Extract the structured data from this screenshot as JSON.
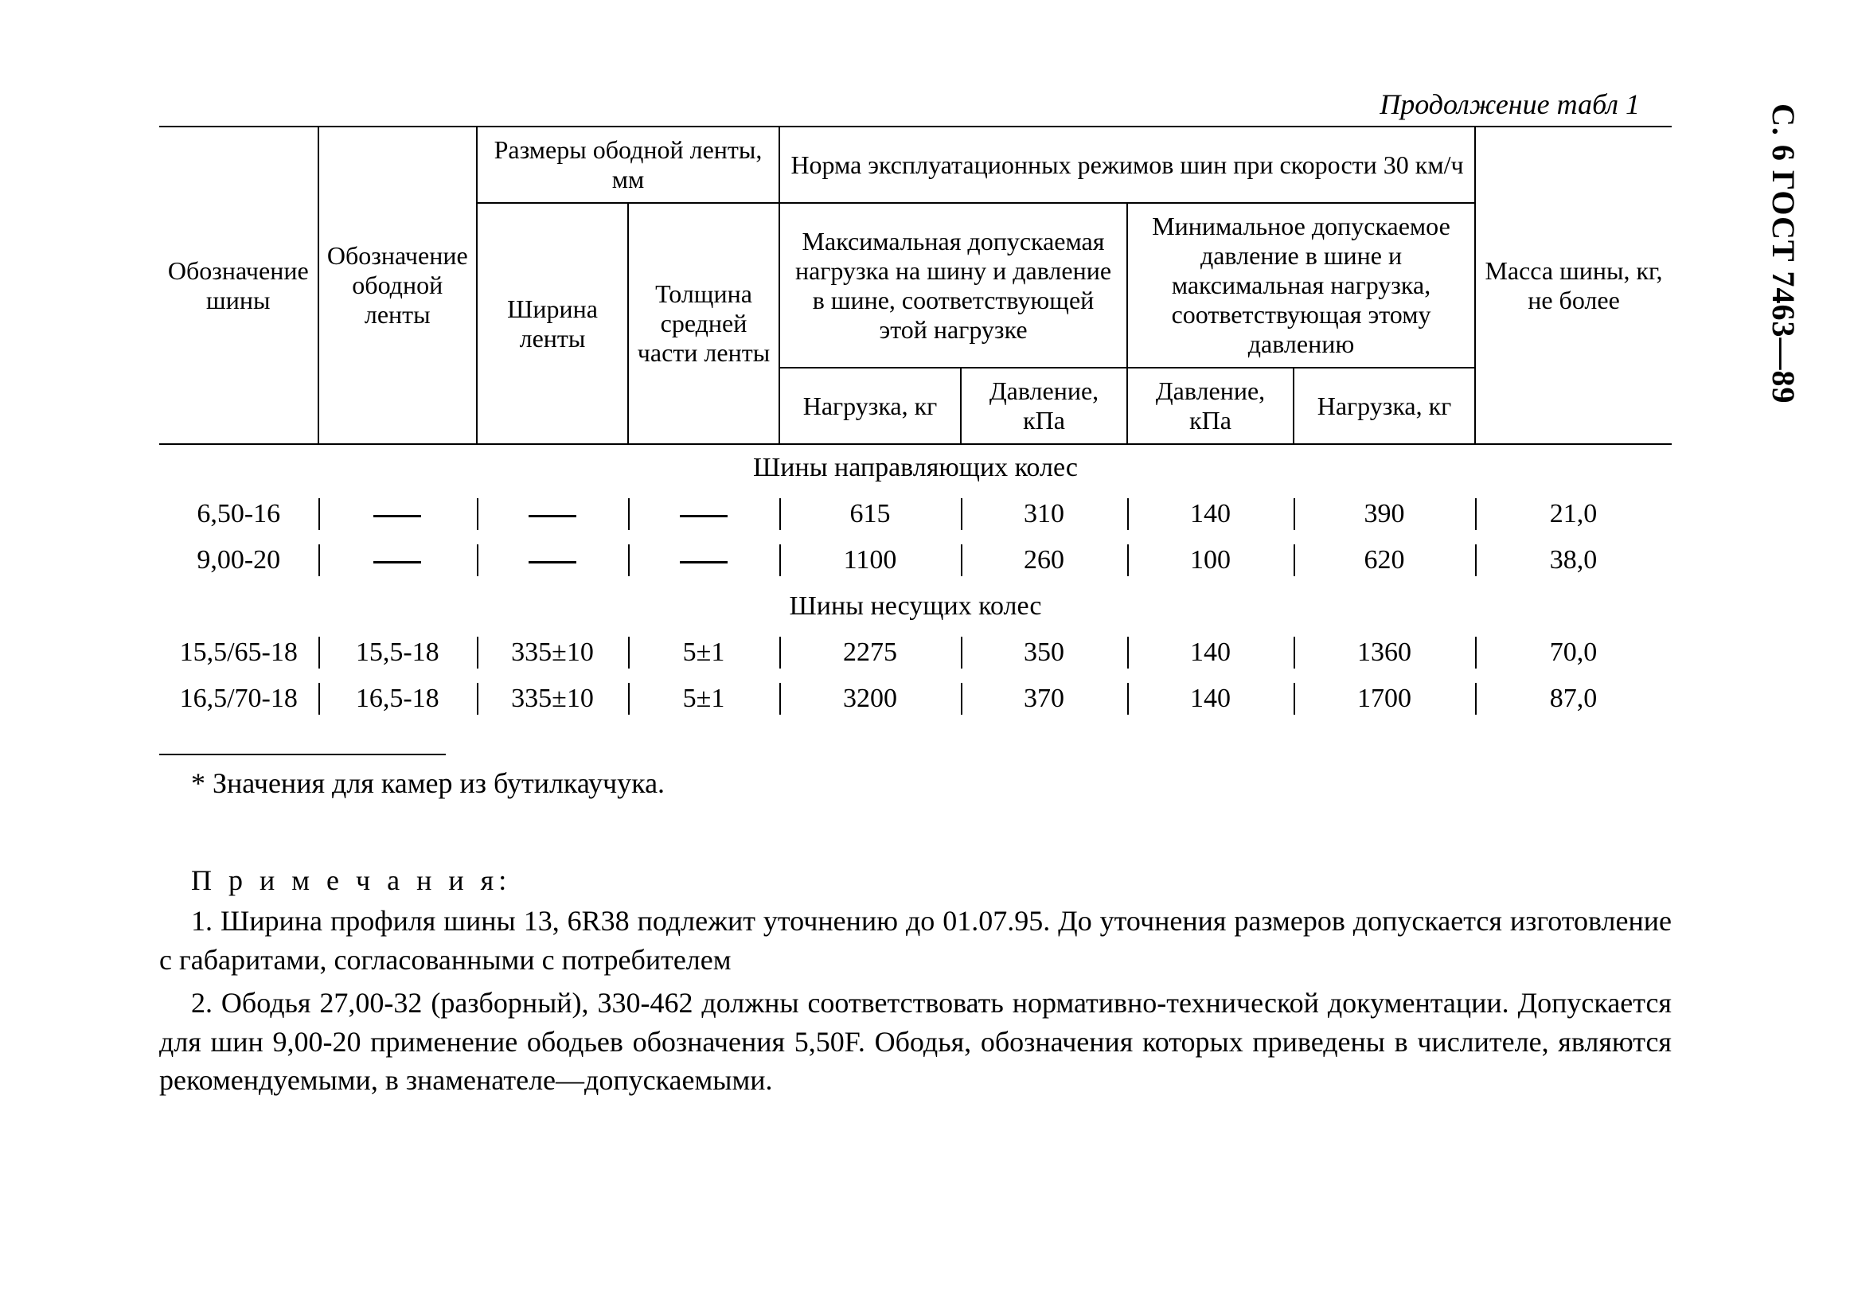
{
  "side_label": "С. 6 ГОСТ 7463—89",
  "caption": "Продолжение табл  1",
  "headers": {
    "col_tire": "Обозначение шины",
    "col_rim_tape": "Обозначение ободной ленты",
    "rim_tape_dims": "Размеры ободной ленты, мм",
    "norm": "Норма эксплуатационных режимов шин при скорости 30 км/ч",
    "mass": "Масса шины, кг, не более",
    "tape_width": "Ширина ленты",
    "tape_thickness": "Толщина средней части ленты",
    "max_group": "Максимальная допускаемая нагрузка на шину и давление в шине, соответствующей этой нагрузке",
    "min_group": "Минимальное допускаемое давление в шине и максимальная нагрузка, соответствующая этому давлению",
    "load_kg": "Нагрузка, кг",
    "pressure_kpa": "Давление, кПа"
  },
  "sections": [
    {
      "title": "Шины направляющих колес",
      "rows": [
        {
          "tire": "6,50-16",
          "rim_tape": "—",
          "tape_w": "—",
          "tape_t": "—",
          "max_load": "615",
          "max_press": "310",
          "min_press": "140",
          "min_load": "390",
          "mass": "21,0"
        },
        {
          "tire": "9,00-20",
          "rim_tape": "—",
          "tape_w": "—",
          "tape_t": "—",
          "max_load": "1100",
          "max_press": "260",
          "min_press": "100",
          "min_load": "620",
          "mass": "38,0"
        }
      ]
    },
    {
      "title": "Шины несущих колес",
      "rows": [
        {
          "tire": "15,5/65-18",
          "rim_tape": "15,5-18",
          "tape_w": "335±10",
          "tape_t": "5±1",
          "max_load": "2275",
          "max_press": "350",
          "min_press": "140",
          "min_load": "1360",
          "mass": "70,0"
        },
        {
          "tire": "16,5/70-18",
          "rim_tape": "16,5-18",
          "tape_w": "335±10",
          "tape_t": "5±1",
          "max_load": "3200",
          "max_press": "370",
          "min_press": "140",
          "min_load": "1700",
          "mass": "87,0"
        }
      ]
    }
  ],
  "footnote": "* Значения для камер из бутилкаучука.",
  "notes_heading": "П р и м е ч а н и я:",
  "notes": [
    "1. Ширина профиля шины 13, 6R38 подлежит уточнению до 01.07.95. До уточнения размеров допускается изготовление с габаритами, согласованными с потребителем",
    "2. Ободья 27,00-32 (разборный), 330-462 должны соответствовать нормативно-технической документации. Допускается для шин 9,00-20 применение ободьев обозначения 5,50F. Ободья, обозначения которых приведены в числителе, являются рекомендуемыми, в знаменателе—допускаемыми."
  ]
}
